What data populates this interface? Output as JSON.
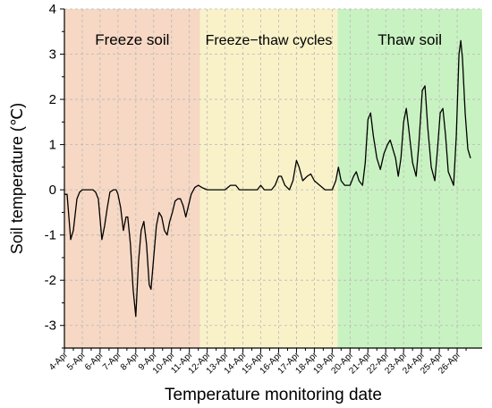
{
  "chart_data": {
    "type": "line",
    "title": "",
    "xlabel": "Temperature monitoring date",
    "ylabel": "Soil temperature (℃)",
    "ylim": [
      -3.5,
      4
    ],
    "yticks": [
      -3,
      -2,
      -1,
      0,
      1,
      2,
      3,
      4
    ],
    "xlim": [
      0,
      23.4
    ],
    "x_ticks": [
      {
        "x": 0,
        "label": "4-Apr"
      },
      {
        "x": 1,
        "label": "5-Apr"
      },
      {
        "x": 2,
        "label": "6-Apr"
      },
      {
        "x": 3,
        "label": "7-Apr"
      },
      {
        "x": 4,
        "label": "8-Apr"
      },
      {
        "x": 5,
        "label": "9-Apr"
      },
      {
        "x": 6,
        "label": "10-Apr"
      },
      {
        "x": 7,
        "label": "11-Apr"
      },
      {
        "x": 8,
        "label": "12-Apr"
      },
      {
        "x": 9,
        "label": "13-Apr"
      },
      {
        "x": 10,
        "label": "14-Apr"
      },
      {
        "x": 11,
        "label": "15-Apr"
      },
      {
        "x": 12,
        "label": "16-Apr"
      },
      {
        "x": 13,
        "label": "17-Apr"
      },
      {
        "x": 14,
        "label": "18-Apr"
      },
      {
        "x": 15,
        "label": "19-Apr"
      },
      {
        "x": 16,
        "label": "20-Apr"
      },
      {
        "x": 17,
        "label": "21-Apr"
      },
      {
        "x": 18,
        "label": "22-Apr"
      },
      {
        "x": 19,
        "label": "23-Apr"
      },
      {
        "x": 20,
        "label": "24-Apr"
      },
      {
        "x": 21,
        "label": "25-Apr"
      },
      {
        "x": 22,
        "label": "26-Apr"
      }
    ],
    "grid": true,
    "regions": [
      {
        "label": "Freeze soil",
        "x_start": 0,
        "x_end": 7.6,
        "color": "#f6d8c4"
      },
      {
        "label": "Freeze−thaw cycles",
        "x_start": 7.6,
        "x_end": 15.3,
        "color": "#f9f2c9"
      },
      {
        "label": "Thaw soil",
        "x_start": 15.3,
        "x_end": 23.4,
        "color": "#c9f2c2"
      }
    ],
    "series": [
      {
        "color": "#000000",
        "points": [
          [
            0,
            -0.1
          ],
          [
            0.15,
            -0.1
          ],
          [
            0.35,
            -1.1
          ],
          [
            0.5,
            -0.9
          ],
          [
            0.7,
            -0.2
          ],
          [
            0.85,
            -0.05
          ],
          [
            1.0,
            0
          ],
          [
            1.2,
            0
          ],
          [
            1.4,
            0
          ],
          [
            1.6,
            0
          ],
          [
            1.75,
            -0.05
          ],
          [
            1.9,
            -0.2
          ],
          [
            2.1,
            -1.1
          ],
          [
            2.25,
            -0.8
          ],
          [
            2.4,
            -0.4
          ],
          [
            2.55,
            -0.05
          ],
          [
            2.75,
            0
          ],
          [
            2.9,
            0
          ],
          [
            3.0,
            -0.1
          ],
          [
            3.15,
            -0.4
          ],
          [
            3.3,
            -0.9
          ],
          [
            3.45,
            -0.6
          ],
          [
            3.55,
            -0.6
          ],
          [
            3.7,
            -1.2
          ],
          [
            3.85,
            -2.2
          ],
          [
            4.0,
            -2.8
          ],
          [
            4.15,
            -1.6
          ],
          [
            4.3,
            -0.9
          ],
          [
            4.45,
            -0.7
          ],
          [
            4.6,
            -1.2
          ],
          [
            4.75,
            -2.1
          ],
          [
            4.85,
            -2.2
          ],
          [
            5.0,
            -1.5
          ],
          [
            5.15,
            -0.8
          ],
          [
            5.3,
            -0.5
          ],
          [
            5.45,
            -0.6
          ],
          [
            5.6,
            -0.9
          ],
          [
            5.75,
            -1.0
          ],
          [
            5.9,
            -0.7
          ],
          [
            6.05,
            -0.5
          ],
          [
            6.2,
            -0.25
          ],
          [
            6.35,
            -0.2
          ],
          [
            6.5,
            -0.2
          ],
          [
            6.65,
            -0.35
          ],
          [
            6.8,
            -0.6
          ],
          [
            6.95,
            -0.35
          ],
          [
            7.1,
            -0.1
          ],
          [
            7.3,
            0.05
          ],
          [
            7.5,
            0.1
          ],
          [
            7.7,
            0.05
          ],
          [
            8.0,
            0.0
          ],
          [
            8.5,
            0.0
          ],
          [
            9.0,
            0.0
          ],
          [
            9.3,
            0.1
          ],
          [
            9.6,
            0.1
          ],
          [
            9.8,
            0.0
          ],
          [
            10.2,
            0.0
          ],
          [
            10.8,
            0.0
          ],
          [
            11.0,
            0.1
          ],
          [
            11.2,
            0.0
          ],
          [
            11.6,
            0.0
          ],
          [
            11.8,
            0.1
          ],
          [
            12.0,
            0.3
          ],
          [
            12.15,
            0.3
          ],
          [
            12.35,
            0.1
          ],
          [
            12.6,
            0.0
          ],
          [
            12.8,
            0.2
          ],
          [
            13.0,
            0.65
          ],
          [
            13.15,
            0.5
          ],
          [
            13.35,
            0.2
          ],
          [
            13.6,
            0.3
          ],
          [
            13.8,
            0.35
          ],
          [
            14.0,
            0.2
          ],
          [
            14.3,
            0.1
          ],
          [
            14.6,
            0.0
          ],
          [
            15.0,
            0.0
          ],
          [
            15.2,
            0.2
          ],
          [
            15.35,
            0.5
          ],
          [
            15.5,
            0.2
          ],
          [
            15.7,
            0.1
          ],
          [
            16.0,
            0.1
          ],
          [
            16.2,
            0.3
          ],
          [
            16.35,
            0.4
          ],
          [
            16.5,
            0.2
          ],
          [
            16.7,
            0.1
          ],
          [
            16.85,
            0.6
          ],
          [
            17.0,
            1.55
          ],
          [
            17.15,
            1.7
          ],
          [
            17.3,
            1.2
          ],
          [
            17.5,
            0.7
          ],
          [
            17.7,
            0.45
          ],
          [
            17.9,
            0.8
          ],
          [
            18.1,
            1.0
          ],
          [
            18.25,
            1.1
          ],
          [
            18.4,
            0.9
          ],
          [
            18.55,
            0.7
          ],
          [
            18.7,
            0.3
          ],
          [
            18.85,
            0.7
          ],
          [
            19.0,
            1.5
          ],
          [
            19.15,
            1.8
          ],
          [
            19.3,
            1.3
          ],
          [
            19.5,
            0.6
          ],
          [
            19.7,
            0.3
          ],
          [
            19.85,
            1.0
          ],
          [
            20.05,
            2.2
          ],
          [
            20.2,
            2.3
          ],
          [
            20.35,
            1.4
          ],
          [
            20.55,
            0.5
          ],
          [
            20.75,
            0.2
          ],
          [
            20.9,
            0.9
          ],
          [
            21.05,
            1.7
          ],
          [
            21.2,
            1.8
          ],
          [
            21.35,
            1.2
          ],
          [
            21.5,
            0.4
          ],
          [
            21.7,
            0.2
          ],
          [
            21.8,
            0.1
          ],
          [
            21.95,
            1.2
          ],
          [
            22.1,
            3.0
          ],
          [
            22.2,
            3.3
          ],
          [
            22.3,
            2.9
          ],
          [
            22.45,
            1.7
          ],
          [
            22.6,
            0.9
          ],
          [
            22.75,
            0.7
          ]
        ]
      }
    ]
  }
}
